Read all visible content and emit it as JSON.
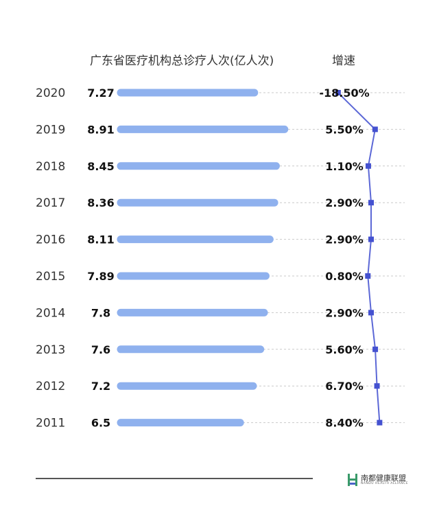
{
  "header": {
    "left_title": "广东省医疗机构总诊疗人次(亿人次)",
    "right_title": "增速"
  },
  "chart_data": {
    "type": "bar",
    "categories": [
      "2020",
      "2019",
      "2018",
      "2017",
      "2016",
      "2015",
      "2014",
      "2013",
      "2012",
      "2011"
    ],
    "value_labels": [
      "7.27",
      "8.91",
      "8.45",
      "8.36",
      "8.11",
      "7.89",
      "7.8",
      "7.6",
      "7.2",
      "6.5"
    ],
    "values": [
      7.27,
      8.91,
      8.45,
      8.36,
      8.11,
      7.89,
      7.8,
      7.6,
      7.2,
      6.5
    ],
    "growth_labels": [
      "-18.50%",
      "5.50%",
      "1.10%",
      "2.90%",
      "2.90%",
      "0.80%",
      "2.90%",
      "5.60%",
      "6.70%",
      "8.40%"
    ],
    "growth": [
      -18.5,
      5.5,
      1.1,
      2.9,
      2.9,
      0.8,
      2.9,
      5.6,
      6.7,
      8.4
    ],
    "bar_color": "#8fb1ee",
    "line_color": "#5b67d6",
    "marker_color": "#4451d0"
  },
  "logo": {
    "name": "南都健康联盟",
    "sub": "NANDU HEALTH ALLIANCE",
    "icon_color": "#3a9a6a",
    "icon_accent": "#4a63c8"
  }
}
